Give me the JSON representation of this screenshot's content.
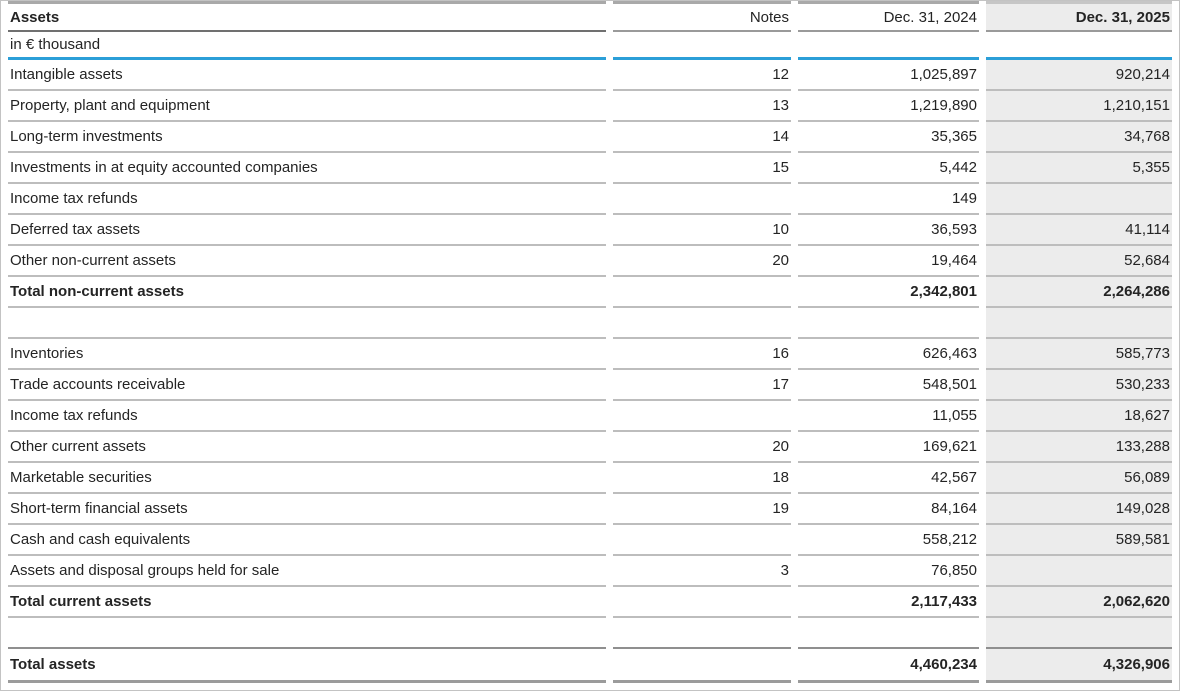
{
  "table": {
    "title": "Assets",
    "unit_label": "in € thousand",
    "columns": {
      "notes": "Notes",
      "y2024": "Dec. 31, 2024",
      "y2025": "Dec. 31, 2025"
    },
    "rows": [
      {
        "style": "data",
        "label": "Intangible assets",
        "note": "12",
        "y2024": "1,025,897",
        "y2025": "920,214"
      },
      {
        "style": "data",
        "label": "Property, plant and equipment",
        "note": "13",
        "y2024": "1,219,890",
        "y2025": "1,210,151"
      },
      {
        "style": "data",
        "label": "Long-term investments",
        "note": "14",
        "y2024": "35,365",
        "y2025": "34,768"
      },
      {
        "style": "data",
        "label": "Investments in at equity accounted companies",
        "note": "15",
        "y2024": "5,442",
        "y2025": "5,355"
      },
      {
        "style": "data",
        "label": "Income tax refunds",
        "note": "",
        "y2024": "149",
        "y2025": ""
      },
      {
        "style": "data",
        "label": "Deferred tax assets",
        "note": "10",
        "y2024": "36,593",
        "y2025": "41,114"
      },
      {
        "style": "data",
        "label": "Other non-current assets",
        "note": "20",
        "y2024": "19,464",
        "y2025": "52,684"
      },
      {
        "style": "total",
        "label": "Total non-current assets",
        "note": "",
        "y2024": "2,342,801",
        "y2025": "2,264,286"
      },
      {
        "style": "spacer",
        "label": "",
        "note": "",
        "y2024": "",
        "y2025": ""
      },
      {
        "style": "data",
        "label": "Inventories",
        "note": "16",
        "y2024": "626,463",
        "y2025": "585,773"
      },
      {
        "style": "data",
        "label": "Trade accounts receivable",
        "note": "17",
        "y2024": "548,501",
        "y2025": "530,233"
      },
      {
        "style": "data",
        "label": "Income tax refunds",
        "note": "",
        "y2024": "11,055",
        "y2025": "18,627"
      },
      {
        "style": "data",
        "label": "Other current assets",
        "note": "20",
        "y2024": "169,621",
        "y2025": "133,288"
      },
      {
        "style": "data",
        "label": "Marketable securities",
        "note": "18",
        "y2024": "42,567",
        "y2025": "56,089"
      },
      {
        "style": "data",
        "label": "Short-term financial assets",
        "note": "19",
        "y2024": "84,164",
        "y2025": "149,028"
      },
      {
        "style": "data",
        "label": "Cash and cash equivalents",
        "note": "",
        "y2024": "558,212",
        "y2025": "589,581"
      },
      {
        "style": "data",
        "label": "Assets and disposal groups held for sale",
        "note": "3",
        "y2024": "76,850",
        "y2025": ""
      },
      {
        "style": "total",
        "label": "Total current assets",
        "note": "",
        "y2024": "2,117,433",
        "y2025": "2,062,620"
      },
      {
        "style": "spacer2",
        "label": "",
        "note": "",
        "y2024": "",
        "y2025": ""
      },
      {
        "style": "grand",
        "label": "Total assets",
        "note": "",
        "y2024": "4,460,234",
        "y2025": "4,326,906"
      }
    ]
  },
  "colors": {
    "accent_blue": "#2B9FD8",
    "highlight_column_bg": "#ECECEC",
    "row_line": "#BDBDBD"
  }
}
